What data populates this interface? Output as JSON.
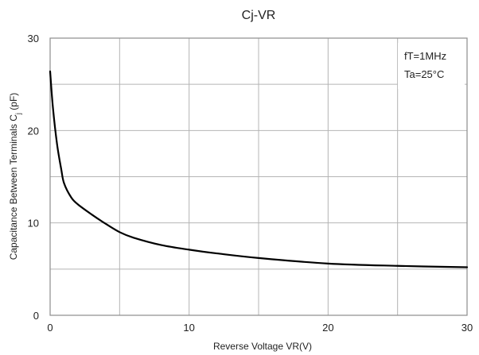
{
  "chart_data": {
    "type": "line",
    "title": "Cj-VR",
    "xlabel": "Reverse Voltage   VR(V)",
    "ylabel": "Capacitance Between Terminals Cj (pF)",
    "ylabel_main": "Capacitance Between Terminals C",
    "ylabel_sub": "j",
    "ylabel_tail": " (pF)",
    "xlim": [
      0,
      30
    ],
    "ylim": [
      0,
      30
    ],
    "x_ticks": [
      0,
      10,
      20,
      30
    ],
    "x_gridlines": [
      0,
      5,
      10,
      15,
      20,
      25,
      30
    ],
    "y_ticks": [
      0,
      10,
      20,
      30
    ],
    "y_gridlines": [
      0,
      5,
      10,
      15,
      20,
      25,
      30
    ],
    "grid": true,
    "annotations": [
      "fT=1MHz",
      "Ta=25°C"
    ],
    "series": [
      {
        "x": [
          0,
          0.2,
          0.5,
          0.8,
          1,
          1.5,
          2,
          3,
          4,
          5,
          6,
          8,
          10,
          12,
          15,
          20,
          25,
          30
        ],
        "y": [
          26.4,
          22.5,
          18.5,
          15.8,
          14.3,
          12.8,
          12.0,
          10.9,
          9.9,
          9.0,
          8.4,
          7.6,
          7.1,
          6.7,
          6.2,
          5.6,
          5.35,
          5.2
        ]
      }
    ]
  }
}
